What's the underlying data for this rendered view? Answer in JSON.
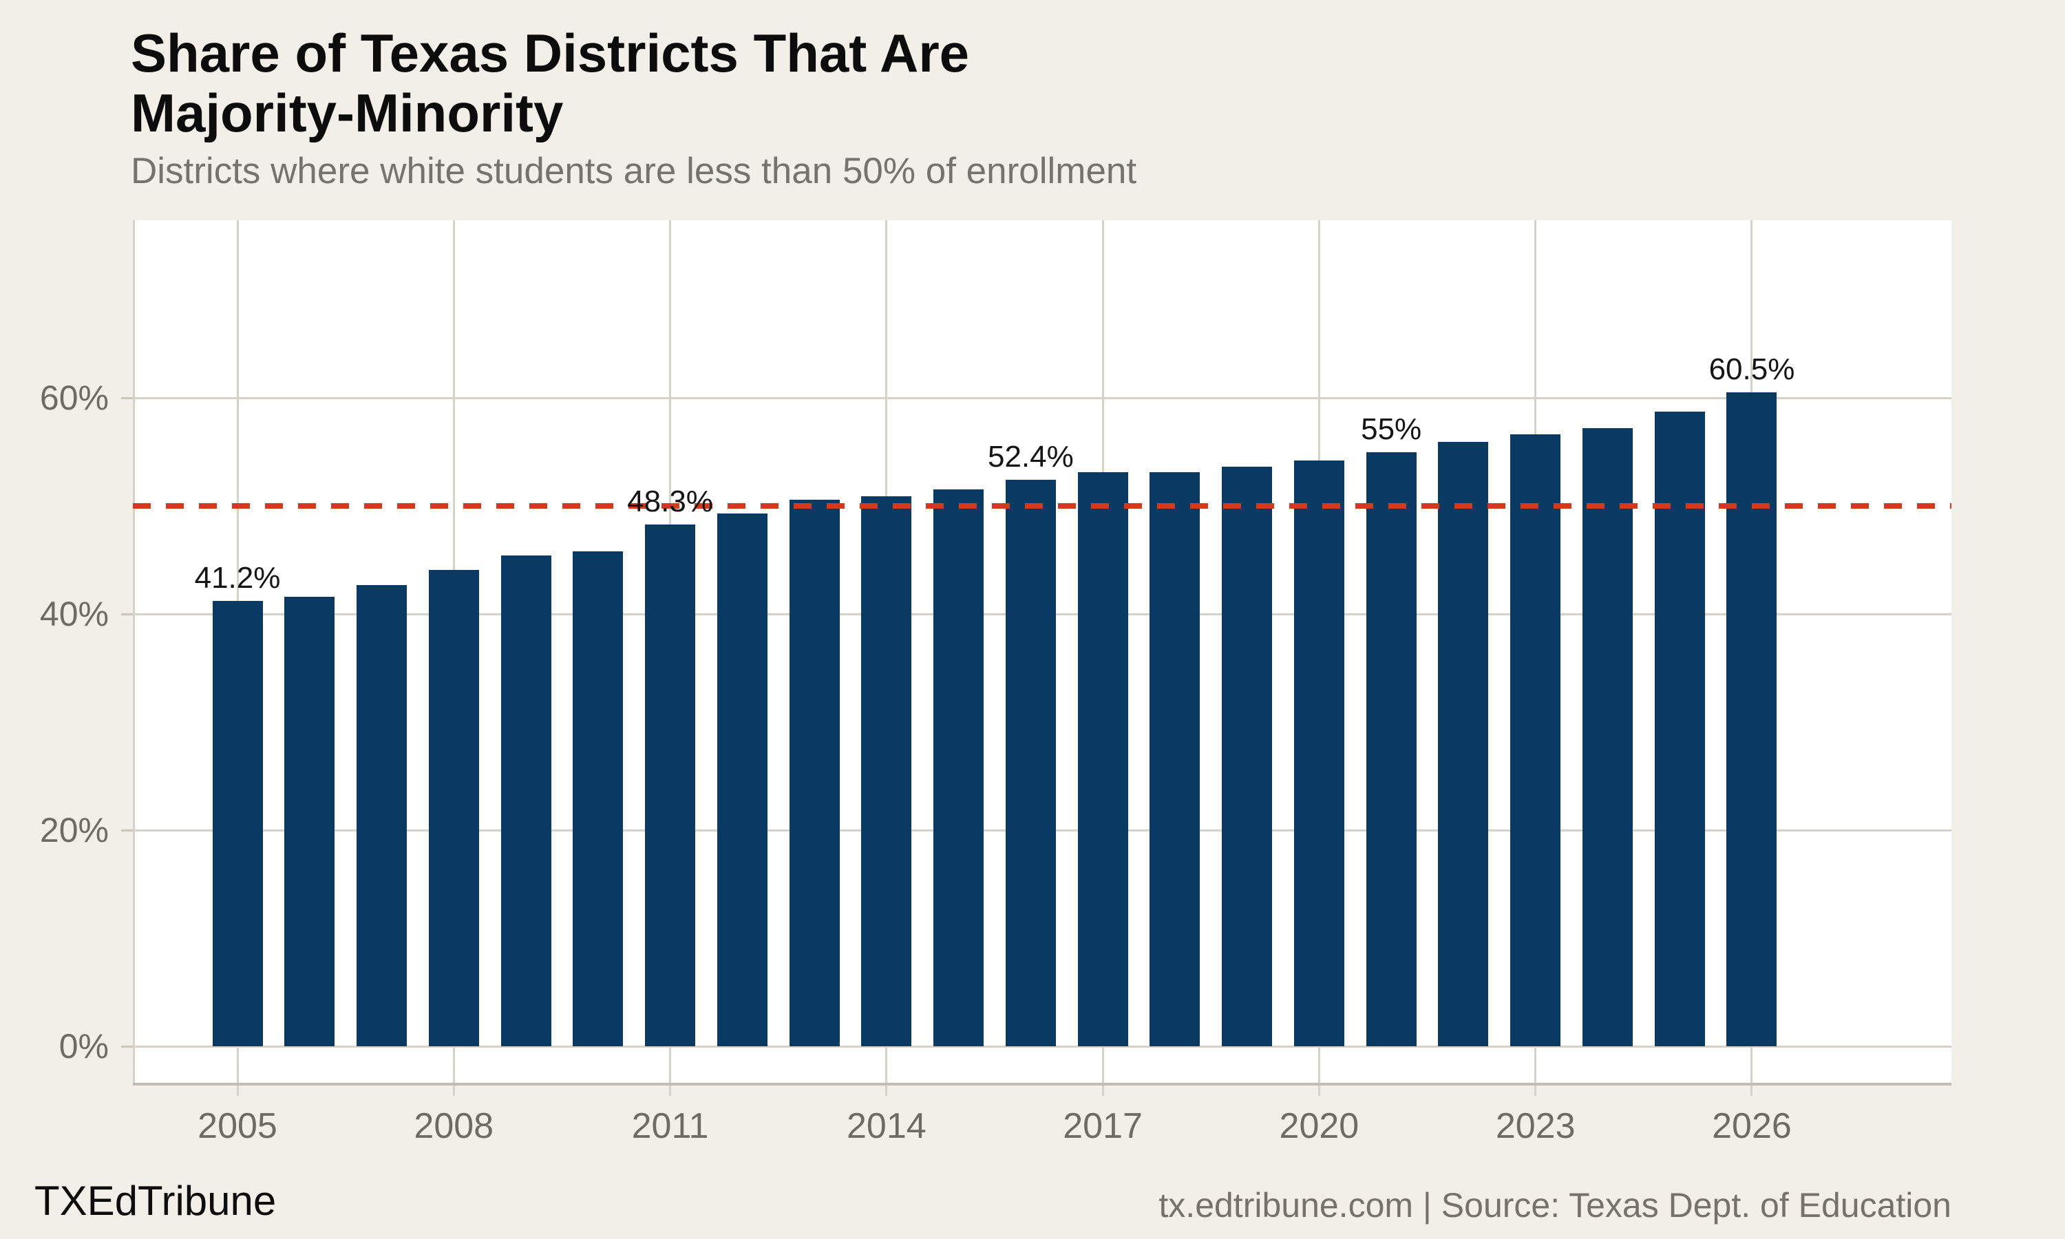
{
  "title": {
    "line1": "Share of Texas Districts That Are",
    "line2": "Majority-Minority"
  },
  "subtitle": "Districts where white students are less than 50% of enrollment",
  "footer": {
    "brand": "TXEdTribune",
    "source": "tx.edtribune.com | Source: Texas Dept. of Education"
  },
  "colors": {
    "background": "#f2efe8",
    "panel": "#ffffff",
    "bar": "#0a3a64",
    "reference_line": "#d4391b",
    "gridline": "#d6d2ca",
    "axis_line": "#c2bdb2",
    "tick_text": "#6e6a64",
    "title_text": "#0c0c0c",
    "subtitle_text": "#76726d",
    "value_label_text": "#151515"
  },
  "chart_data": {
    "type": "bar",
    "title": "Share of Texas Districts That Are Majority-Minority",
    "subtitle": "Districts where white students are less than 50% of enrollment",
    "xlabel": "",
    "ylabel": "",
    "categories": [
      2005,
      2006,
      2007,
      2008,
      2009,
      2010,
      2011,
      2012,
      2013,
      2014,
      2015,
      2016,
      2017,
      2018,
      2019,
      2020,
      2021,
      2022,
      2023,
      2024,
      2025,
      2026
    ],
    "values": [
      41.2,
      41.6,
      42.7,
      44.1,
      45.4,
      45.8,
      48.3,
      49.3,
      50.6,
      50.9,
      51.5,
      52.4,
      53.1,
      53.1,
      53.6,
      54.2,
      55,
      55.9,
      56.6,
      57.2,
      58.7,
      60.5
    ],
    "value_labels": {
      "2005": "41.2%",
      "2011": "48.3%",
      "2016": "52.4%",
      "2021": "55%",
      "2026": "60.5%"
    },
    "reference_line": {
      "value": 50,
      "style": "dashed"
    },
    "y_ticks": [
      0,
      20,
      40,
      60
    ],
    "y_tick_labels": [
      "0%",
      "20%",
      "40%",
      "60%"
    ],
    "x_ticks": [
      2005,
      2008,
      2011,
      2014,
      2017,
      2020,
      2023,
      2026
    ],
    "ylim": [
      0,
      76.4
    ],
    "grid": "both",
    "legend": "none"
  }
}
